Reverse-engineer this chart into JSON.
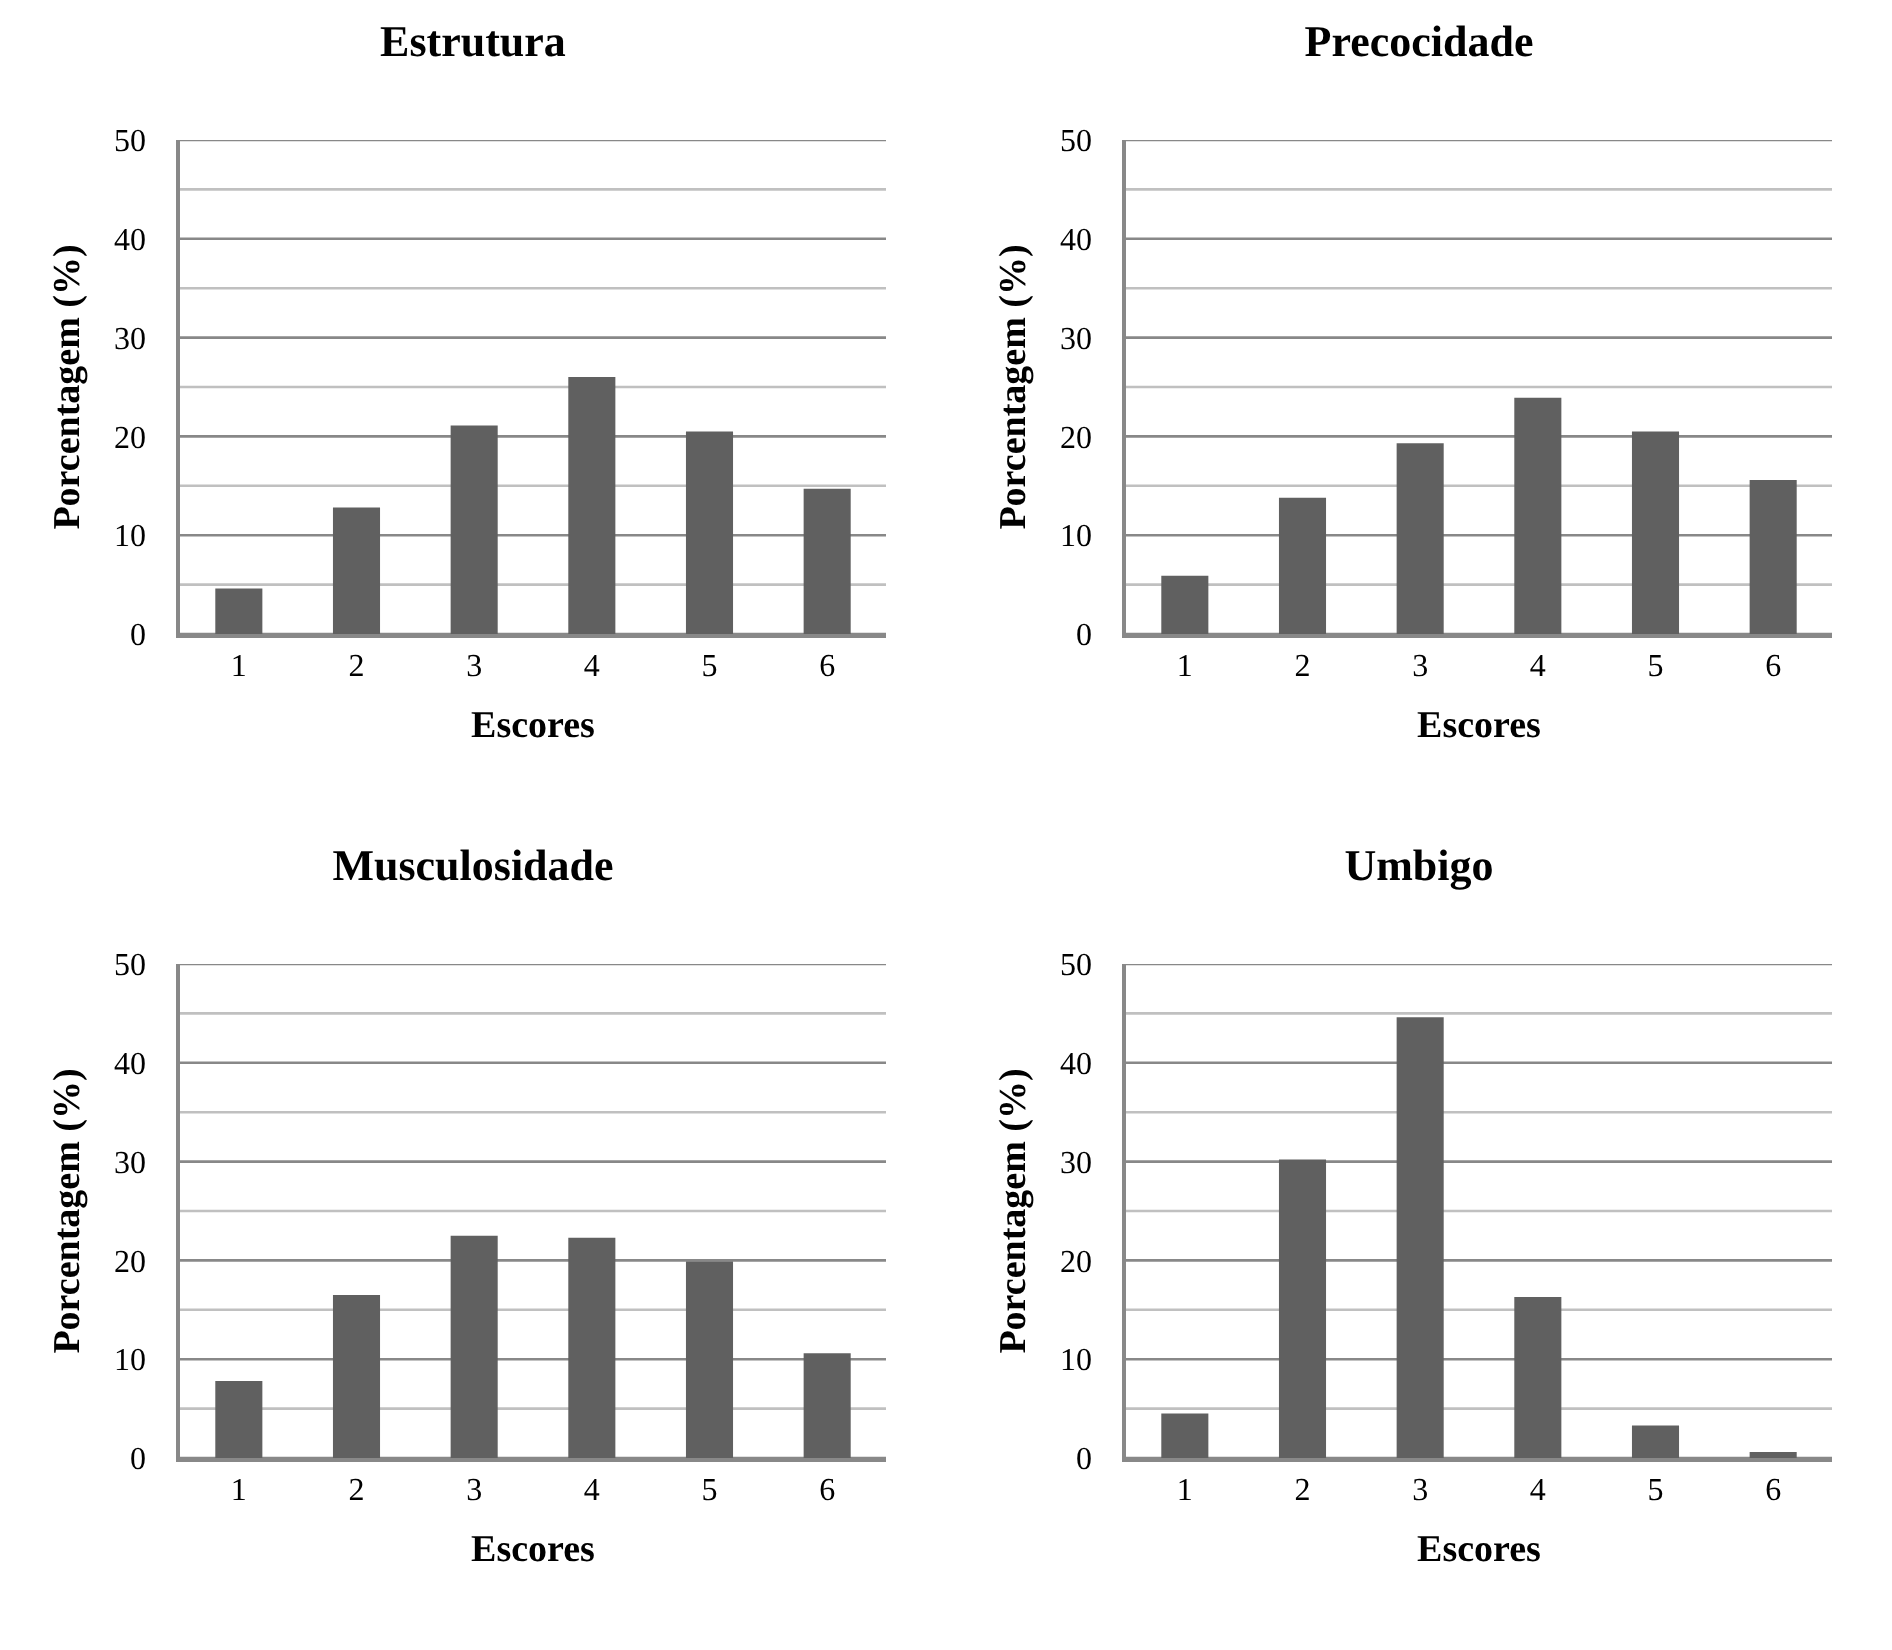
{
  "chart_data": [
    {
      "type": "bar",
      "title": "Estrutura",
      "xlabel": "Escores",
      "ylabel": "Porcentagem (%)",
      "categories": [
        "1",
        "2",
        "3",
        "4",
        "5",
        "6"
      ],
      "values": [
        4.6,
        12.8,
        21.1,
        26.0,
        20.5,
        14.7
      ],
      "color": "#606060",
      "ylim": [
        0,
        50
      ],
      "yticks": [
        0,
        {
          "value": 5,
          "label": null
        },
        10,
        {
          "value": 15,
          "label": null
        },
        20,
        {
          "value": 25,
          "label": null
        },
        30,
        {
          "value": 35,
          "label": null
        },
        40,
        {
          "value": 45,
          "label": null
        },
        50
      ],
      "grid": true
    },
    {
      "type": "bar",
      "title": "Precocidade",
      "xlabel": "Escores",
      "ylabel": "Porcentagem (%)",
      "categories": [
        "1",
        "2",
        "3",
        "4",
        "5",
        "6"
      ],
      "values": [
        5.9,
        13.8,
        19.3,
        23.9,
        20.5,
        15.6
      ],
      "color": "#606060",
      "ylim": [
        0,
        50
      ],
      "yticks": [
        0,
        {
          "value": 5,
          "label": null
        },
        10,
        {
          "value": 15,
          "label": null
        },
        20,
        {
          "value": 25,
          "label": null
        },
        30,
        {
          "value": 35,
          "label": null
        },
        40,
        {
          "value": 45,
          "label": null
        },
        50
      ],
      "grid": true
    },
    {
      "type": "bar",
      "title": "Musculosidade",
      "xlabel": "Escores",
      "ylabel": "Porcentagem (%)",
      "categories": [
        "1",
        "2",
        "3",
        "4",
        "5",
        "6"
      ],
      "values": [
        7.8,
        16.5,
        22.5,
        22.3,
        19.9,
        10.6
      ],
      "color": "#606060",
      "ylim": [
        0,
        50
      ],
      "yticks": [
        0,
        {
          "value": 5,
          "label": null
        },
        10,
        {
          "value": 15,
          "label": null
        },
        20,
        {
          "value": 25,
          "label": null
        },
        30,
        {
          "value": 35,
          "label": null
        },
        40,
        {
          "value": 45,
          "label": null
        },
        50
      ],
      "grid": true
    },
    {
      "type": "bar",
      "title": "Umbigo",
      "xlabel": "Escores",
      "ylabel": "Porcentagem (%)",
      "categories": [
        "1",
        "2",
        "3",
        "4",
        "5",
        "6"
      ],
      "values": [
        4.5,
        30.2,
        44.6,
        16.3,
        3.3,
        0.6
      ],
      "color": "#606060",
      "ylim": [
        0,
        50
      ],
      "yticks": [
        0,
        {
          "value": 5,
          "label": null
        },
        10,
        {
          "value": 15,
          "label": null
        },
        20,
        {
          "value": 25,
          "label": null
        },
        30,
        {
          "value": 35,
          "label": null
        },
        40,
        {
          "value": 45,
          "label": null
        },
        50
      ],
      "grid": true
    }
  ]
}
